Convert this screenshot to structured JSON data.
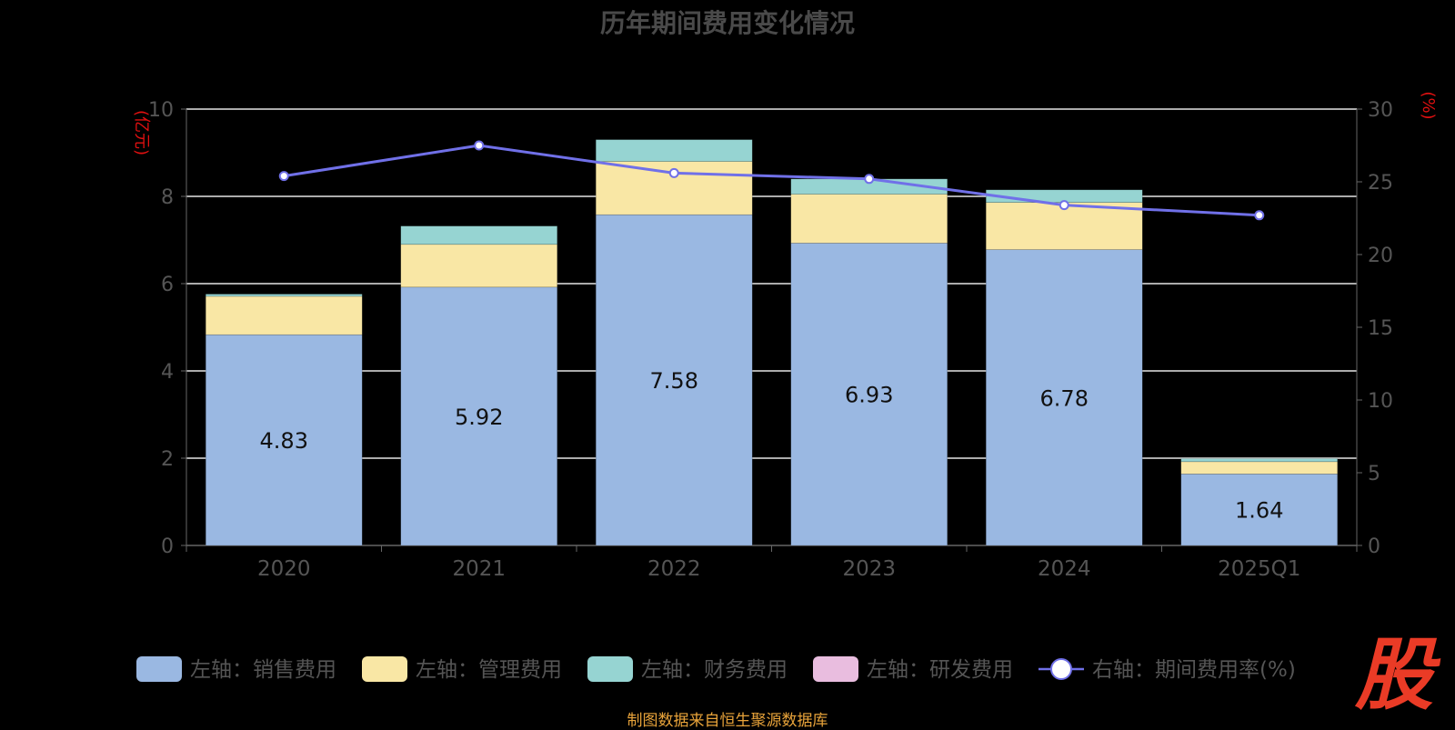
{
  "title": "历年期间费用变化情况",
  "chart_data": {
    "type": "bar",
    "stacked": true,
    "categories": [
      "2020",
      "2021",
      "2022",
      "2023",
      "2024",
      "2025Q1"
    ],
    "left_axis": {
      "unit_label": "(亿元)",
      "range": [
        0,
        10
      ],
      "ticks": [
        "0",
        "2",
        "4",
        "6",
        "8",
        "10"
      ]
    },
    "right_axis": {
      "unit_label": "(%)",
      "range": [
        0,
        30
      ],
      "ticks": [
        "0",
        "5",
        "10",
        "15",
        "20",
        "25",
        "30"
      ]
    },
    "series": [
      {
        "name": "左轴：销售费用",
        "axis": "left",
        "color": "#9ab8e2",
        "values": [
          4.83,
          5.92,
          7.58,
          6.93,
          6.78,
          1.64
        ],
        "labels": [
          "4.83",
          "5.92",
          "7.58",
          "6.93",
          "6.78",
          "1.64"
        ]
      },
      {
        "name": "左轴：管理费用",
        "axis": "left",
        "color": "#f9e7a5",
        "values": [
          0.88,
          0.98,
          1.22,
          1.12,
          1.08,
          0.28
        ]
      },
      {
        "name": "左轴：财务费用",
        "axis": "left",
        "color": "#96d4d2",
        "values": [
          0.05,
          0.42,
          0.5,
          0.35,
          0.29,
          0.07
        ]
      },
      {
        "name": "左轴：研发费用",
        "axis": "left",
        "color": "#e9bddf",
        "values": [
          0,
          0,
          0,
          0,
          0,
          0
        ]
      },
      {
        "name": "右轴：期间费用率(%)",
        "axis": "right",
        "type": "line",
        "color": "#7070e8",
        "values": [
          25.4,
          27.5,
          25.6,
          25.2,
          23.4,
          22.7
        ]
      }
    ],
    "grid": true,
    "legend_position": "bottom"
  },
  "footer": "制图数据来自恒生聚源数据库",
  "brand_mark": "股"
}
